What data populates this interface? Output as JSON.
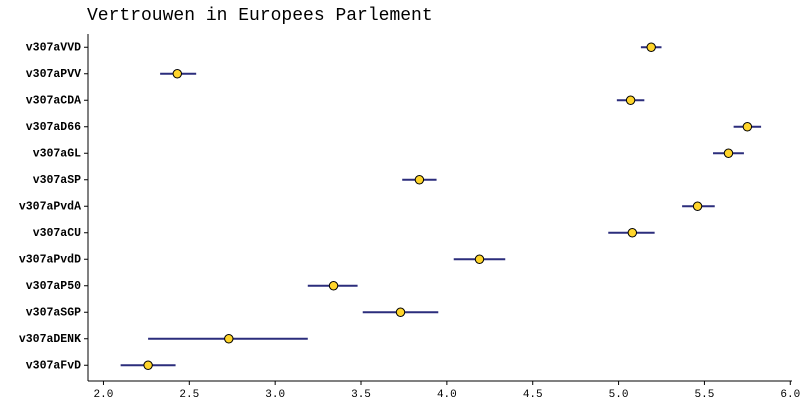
{
  "chart_data": {
    "type": "dot-errorbar",
    "title": "Vertrouwen in Europees Parlement",
    "categories": [
      "v307aVVD",
      "v307aPVV",
      "v307aCDA",
      "v307aD66",
      "v307aGL",
      "v307aSP",
      "v307aPvdA",
      "v307aCU",
      "v307aPvdD",
      "v307aP50",
      "v307aSGP",
      "v307aDENK",
      "v307aFvD"
    ],
    "series": [
      {
        "color": "#2b2d7c",
        "marker_color": "#ffd52b",
        "values": [
          5.19,
          2.43,
          5.07,
          5.75,
          5.64,
          3.84,
          5.46,
          5.08,
          4.19,
          3.34,
          3.73,
          2.73,
          2.26
        ],
        "lower": [
          5.13,
          2.33,
          4.99,
          5.67,
          5.55,
          3.74,
          5.37,
          4.94,
          4.04,
          3.19,
          3.51,
          2.26,
          2.1
        ],
        "upper": [
          5.25,
          2.54,
          5.15,
          5.83,
          5.73,
          3.94,
          5.56,
          5.21,
          4.34,
          3.48,
          3.95,
          3.19,
          2.42
        ]
      }
    ],
    "xlim": [
      1.91,
      6.01
    ],
    "xticks": [
      {
        "value": 2,
        "label": "2.0"
      },
      2.5,
      {
        "value": 3,
        "label": "3.0"
      },
      3.5,
      {
        "value": 4,
        "label": "4.0"
      },
      4.5,
      {
        "value": 5,
        "label": "5.0"
      },
      5.5,
      {
        "value": 6,
        "label": "6.0"
      }
    ],
    "grid": false
  }
}
